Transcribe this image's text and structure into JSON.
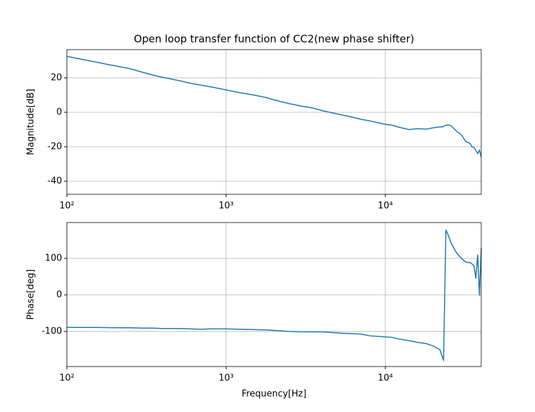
{
  "chart_data": [
    {
      "type": "line",
      "title": "Open loop transfer function of CC2(new phase shifter)",
      "ylabel": "Magnitude[dB]",
      "log_x": true,
      "grid": true,
      "color": "#1f77b4",
      "x": [
        100,
        120,
        150,
        180,
        200,
        250,
        300,
        350,
        400,
        500,
        600,
        700,
        800,
        1000,
        1200,
        1500,
        1800,
        2000,
        2500,
        3000,
        3500,
        4000,
        5000,
        6000,
        7000,
        8000,
        10000,
        11000,
        12000,
        14000,
        16000,
        18000,
        20000,
        22000,
        23000,
        23200,
        24000,
        25000,
        26000,
        28000,
        30000,
        32000,
        34000,
        35000,
        36000,
        37000,
        38000,
        39000,
        40000
      ],
      "values": [
        32.5,
        31,
        29.3,
        27.8,
        27,
        25.3,
        23.2,
        21.5,
        20.3,
        18.5,
        16.8,
        15.7,
        14.8,
        13,
        11.5,
        10,
        8.5,
        7.2,
        5,
        3.5,
        2.5,
        1,
        -1,
        -2.5,
        -4,
        -5,
        -7,
        -7.5,
        -8.5,
        -10,
        -9.5,
        -9.8,
        -9,
        -8.5,
        -8.5,
        -8,
        -7.5,
        -7.3,
        -8,
        -11,
        -13,
        -17,
        -18,
        -20,
        -20.5,
        -22,
        -24,
        -22,
        -26
      ],
      "xlim": [
        100,
        40000
      ],
      "xticks": [
        {
          "value": 100,
          "label": "10²"
        },
        {
          "value": 1000,
          "label": "10³"
        },
        {
          "value": 10000,
          "label": "10⁴"
        }
      ],
      "ylim": [
        -47.6,
        36.4
      ],
      "yticks": [
        -40,
        -20,
        0,
        20
      ]
    },
    {
      "type": "line",
      "ylabel": "Phase[deg]",
      "xlabel": "Frequency[Hz]",
      "log_x": true,
      "grid": true,
      "color": "#1f77b4",
      "x": [
        100,
        120,
        150,
        180,
        200,
        250,
        300,
        350,
        400,
        500,
        600,
        700,
        800,
        1000,
        1200,
        1500,
        1800,
        2000,
        2500,
        3000,
        3500,
        4000,
        5000,
        6000,
        7000,
        8000,
        10000,
        11000,
        12000,
        14000,
        16000,
        18000,
        20000,
        22000,
        23000,
        23200,
        24000,
        25000,
        26000,
        28000,
        30000,
        32000,
        34000,
        35000,
        36000,
        37000,
        38000,
        39000,
        40000
      ],
      "values": [
        -89,
        -89,
        -89,
        -89.5,
        -90,
        -90,
        -91,
        -91,
        -92,
        -92,
        -93,
        -94,
        -93,
        -93,
        -94,
        -95,
        -96,
        -97,
        -100,
        -101,
        -101,
        -101,
        -104,
        -106,
        -107,
        -112,
        -115,
        -116,
        -120,
        -125,
        -130,
        -133,
        -140,
        -150,
        -175,
        -178,
        178,
        160,
        140,
        115,
        100,
        90,
        88,
        85,
        80,
        45,
        110,
        -2,
        128
      ],
      "xlim": [
        100,
        40000
      ],
      "xticks": [
        {
          "value": 100,
          "label": "10²"
        },
        {
          "value": 1000,
          "label": "10³"
        },
        {
          "value": 10000,
          "label": "10⁴"
        }
      ],
      "ylim": [
        -196,
        198
      ],
      "yticks": [
        -100,
        0,
        100
      ]
    }
  ]
}
